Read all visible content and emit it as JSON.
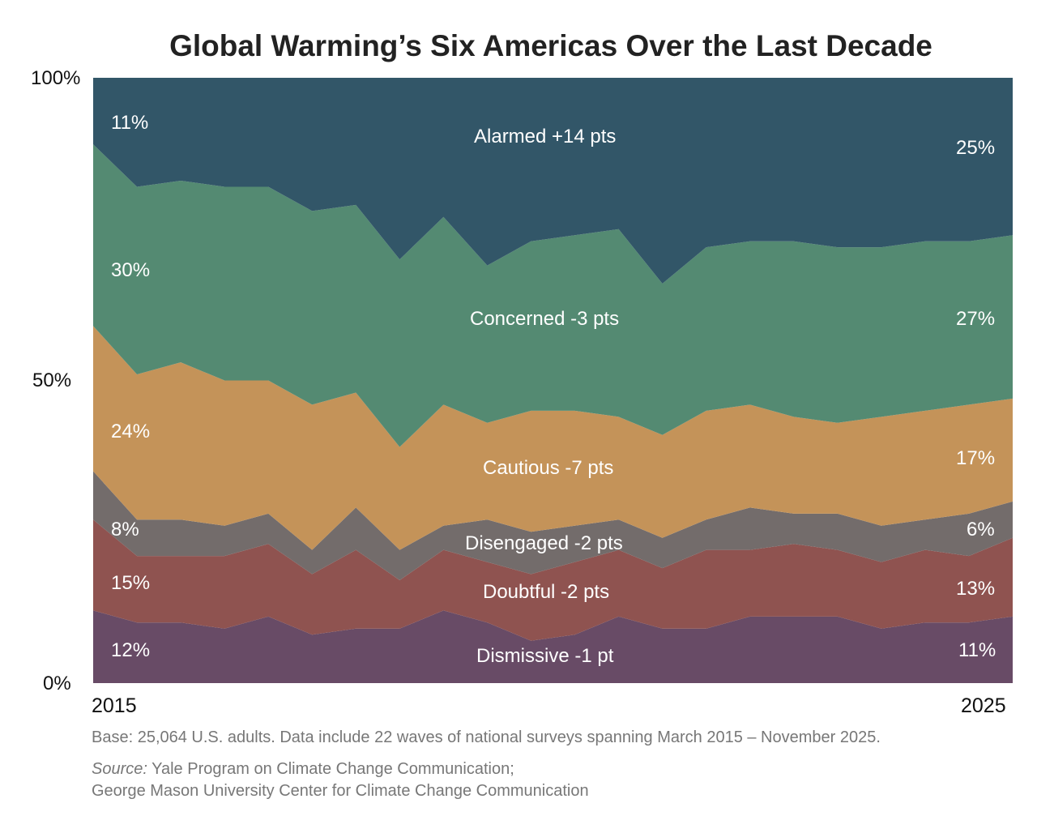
{
  "chart_data": {
    "type": "area",
    "stacked": true,
    "title": "Global Warming’s Six Americas Over the Last Decade",
    "xlabel": "",
    "ylabel": "",
    "ylim": [
      0,
      100
    ],
    "yticks": [
      "0%",
      "50%",
      "100%"
    ],
    "xticks": [
      "2015",
      "2025"
    ],
    "waves": 22,
    "series": [
      {
        "name": "Dismissive",
        "label": "Dismissive -1 pt",
        "start_label": "12%",
        "end_label": "11%",
        "color": "#684b66",
        "values": [
          12,
          10,
          10,
          9,
          11,
          8,
          9,
          9,
          12,
          10,
          7,
          8,
          11,
          9,
          9,
          11,
          11,
          11,
          9,
          10,
          10,
          11
        ]
      },
      {
        "name": "Doubtful",
        "label": "Doubtful -2 pts",
        "start_label": "15%",
        "end_label": "13%",
        "color": "#8f5350",
        "values": [
          15,
          11,
          11,
          12,
          12,
          10,
          13,
          8,
          10,
          10,
          11,
          12,
          11,
          10,
          13,
          11,
          12,
          11,
          11,
          12,
          11,
          13
        ]
      },
      {
        "name": "Disengaged",
        "label": "Disengaged -2 pts",
        "start_label": "8%",
        "end_label": "6%",
        "color": "#736c6b",
        "values": [
          8,
          6,
          6,
          5,
          5,
          4,
          7,
          5,
          4,
          7,
          7,
          6,
          5,
          5,
          5,
          7,
          5,
          6,
          6,
          5,
          7,
          6
        ]
      },
      {
        "name": "Cautious",
        "label": "Cautious -7 pts",
        "start_label": "24%",
        "end_label": "17%",
        "color": "#c49359",
        "values": [
          24,
          24,
          26,
          24,
          22,
          24,
          19,
          17,
          20,
          16,
          20,
          19,
          17,
          17,
          18,
          17,
          16,
          15,
          18,
          18,
          18,
          17
        ]
      },
      {
        "name": "Concerned",
        "label": "Concerned -3 pts",
        "start_label": "30%",
        "end_label": "27%",
        "color": "#548a72",
        "values": [
          30,
          31,
          30,
          32,
          32,
          32,
          31,
          31,
          31,
          26,
          28,
          29,
          31,
          25,
          27,
          27,
          29,
          29,
          28,
          28,
          27,
          27
        ]
      },
      {
        "name": "Alarmed",
        "label": "Alarmed +14 pts",
        "start_label": "11%",
        "end_label": "25%",
        "color": "#325668",
        "values": [
          11,
          17,
          17,
          18,
          18,
          22,
          21,
          30,
          23,
          31,
          26,
          26,
          24,
          33,
          28,
          26,
          27,
          28,
          27,
          26,
          26,
          25
        ]
      }
    ]
  },
  "notes": {
    "base": "Base: 25,064 U.S. adults. Data include 22 waves of national surveys spanning March 2015 – November 2025.",
    "source_prefix": "Source:",
    "source_line1": " Yale Program on Climate Change Communication;",
    "source_line2": "George Mason University Center for Climate Change Communication"
  }
}
